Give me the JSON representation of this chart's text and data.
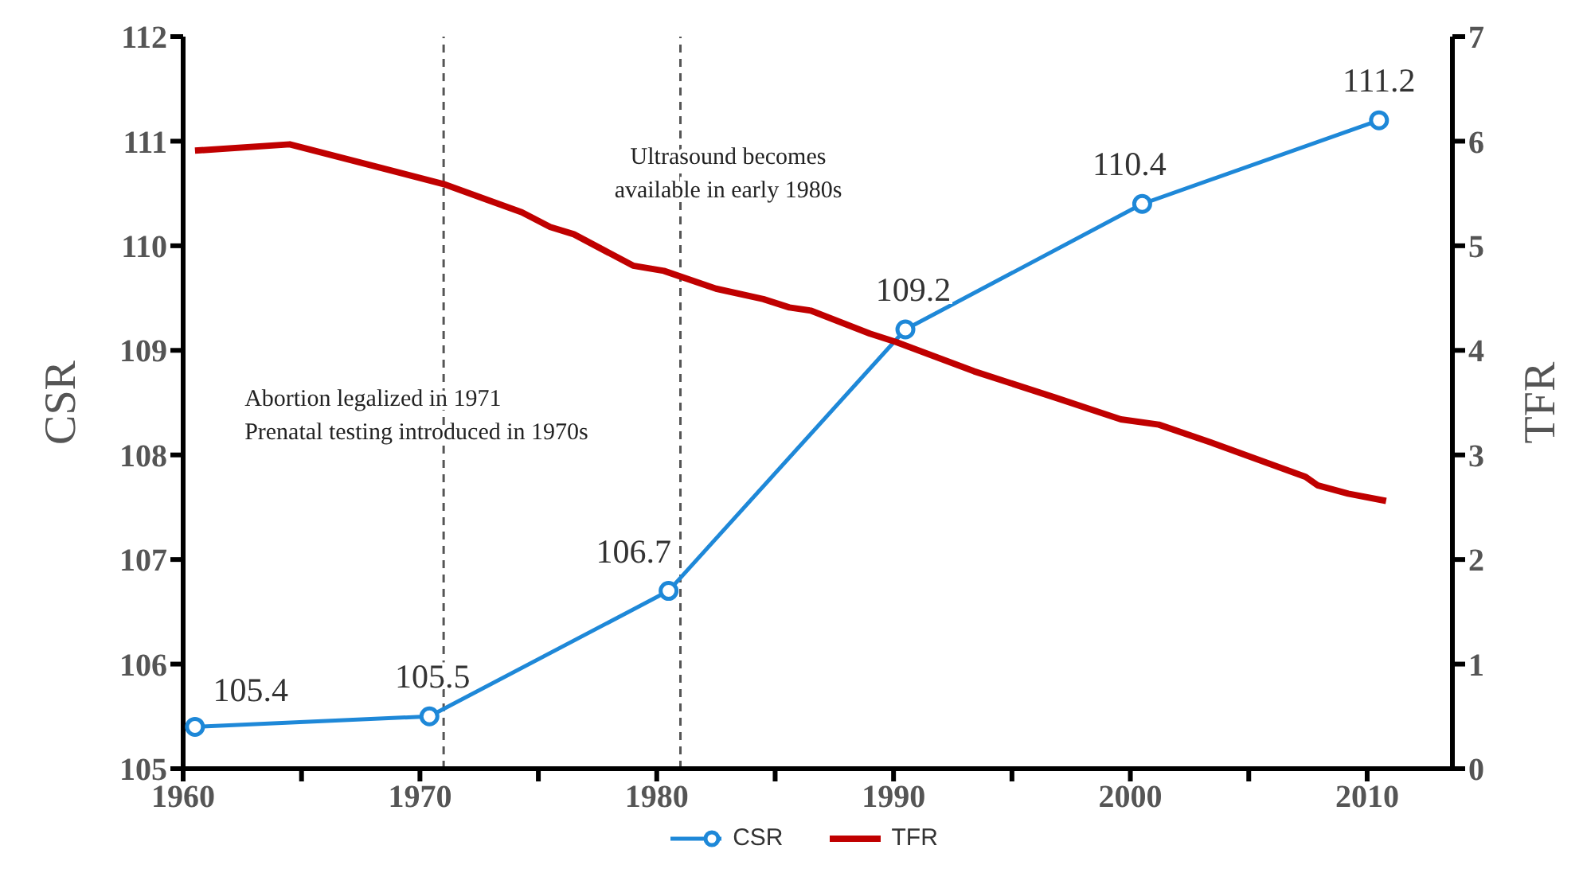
{
  "chart_data": {
    "type": "line",
    "xlabel": null,
    "ylabel": "CSR",
    "y2label": "TFR",
    "xlim": [
      1960,
      2013.6
    ],
    "xticks": [
      1960,
      {
        "value": 1965,
        "label": null
      },
      1970,
      {
        "value": 1975,
        "label": null
      },
      1980,
      {
        "value": 1985,
        "label": null
      },
      1990,
      {
        "value": 1995,
        "label": null
      },
      2000,
      {
        "value": 2005,
        "label": null
      },
      2010
    ],
    "ylim": [
      105,
      112
    ],
    "yticks": [
      105,
      106,
      107,
      108,
      109,
      110,
      111,
      112
    ],
    "y2lim": [
      0,
      7
    ],
    "y2ticks": [
      0,
      1,
      2,
      3,
      4,
      5,
      6,
      7
    ],
    "grid": false,
    "legend": "bottom",
    "series": [
      {
        "name": "CSR",
        "color": "#1e88d8",
        "marker": "circle",
        "x": [
          1960.5,
          1970.4,
          1980.5,
          1990.5,
          2000.5,
          2010.5
        ],
        "values": [
          105.4,
          105.5,
          106.7,
          109.2,
          110.4,
          111.2
        ],
        "value_labels": [
          "105.4",
          "105.5",
          "106.7",
          "109.2",
          "110.4",
          "111.2"
        ]
      },
      {
        "name": "TFR",
        "color": "#c00000",
        "axis": "y2",
        "marker": "none",
        "x": [
          1960.5,
          1964.5,
          1967.4,
          1971,
          1974.3,
          1975.5,
          1976.5,
          1979,
          1980.3,
          1982.5,
          1984.5,
          1985.6,
          1986.5,
          1989,
          1990.1,
          1993.4,
          1996.8,
          1999.6,
          2001.2,
          2003.4,
          2007.4,
          2007.9,
          2009.2,
          2010.8
        ],
        "values": [
          5.91,
          5.97,
          5.8,
          5.59,
          5.32,
          5.18,
          5.11,
          4.81,
          4.76,
          4.59,
          4.49,
          4.41,
          4.38,
          4.16,
          4.08,
          3.8,
          3.55,
          3.34,
          3.29,
          3.12,
          2.79,
          2.71,
          2.63,
          2.56
        ]
      }
    ],
    "ref_lines": [
      {
        "axis": "x",
        "value": 1971,
        "label": "Abortion legalized in 1971\nPrenatal testing introduced in 1970s",
        "color": "#555555",
        "line_style": "dashed"
      },
      {
        "axis": "x",
        "value": 1981,
        "label": "Ultrasound becomes\navailable in early 1980s",
        "color": "#555555",
        "line_style": "dashed"
      }
    ]
  }
}
